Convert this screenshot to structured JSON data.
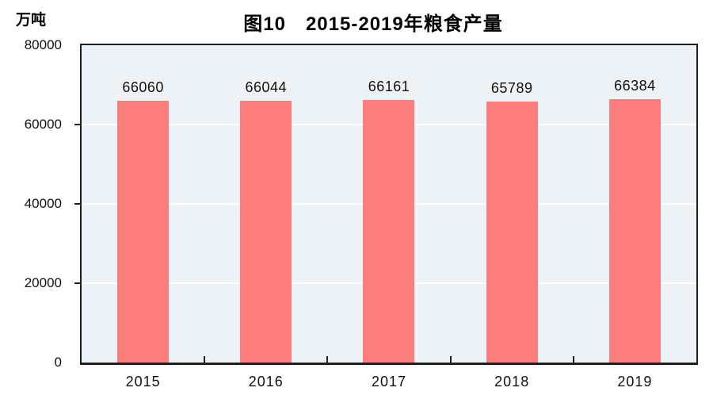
{
  "chart_data": {
    "type": "bar",
    "title": "图10　2015-2019年粮食产量",
    "ylabel": "万吨",
    "xlabel": "",
    "categories": [
      "2015",
      "2016",
      "2017",
      "2018",
      "2019"
    ],
    "values": [
      66060,
      66044,
      66161,
      65789,
      66384
    ],
    "value_labels": [
      "66060",
      "66044",
      "66161",
      "65789",
      "66384"
    ],
    "ylim": [
      0,
      80000
    ],
    "yticks": [
      0,
      20000,
      40000,
      60000,
      80000
    ],
    "ytick_labels": [
      "0",
      "20000",
      "40000",
      "60000",
      "80000"
    ],
    "grid": "horizontal-white",
    "legend_position": "none",
    "colors": {
      "bar": "#fb7d7d",
      "plot_background": "#edf2f7",
      "gridline": "#ffffff",
      "axis": "#1f1f1f",
      "text": "#111111"
    }
  }
}
